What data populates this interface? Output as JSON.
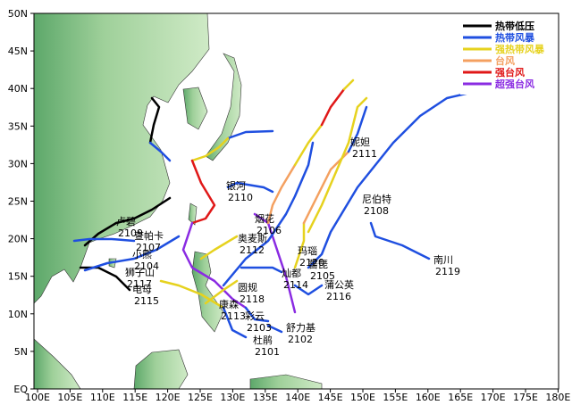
{
  "axes": {
    "lon_labels": [
      "100E",
      "105E",
      "110E",
      "115E",
      "120E",
      "125E",
      "130E",
      "135E",
      "140E",
      "145E",
      "150E",
      "155E",
      "160E",
      "165E",
      "170E",
      "175E",
      "180E"
    ],
    "lat_labels": [
      "EQ",
      "5N",
      "10N",
      "15N",
      "20N",
      "25N",
      "30N",
      "35N",
      "40N",
      "45N",
      "50N"
    ]
  },
  "legend": [
    {
      "label": "热带低压",
      "color": "#000000"
    },
    {
      "label": "热带风暴",
      "color": "#1f4fe0"
    },
    {
      "label": "强热带风暴",
      "color": "#e6d21e"
    },
    {
      "label": "台风",
      "color": "#f4a060"
    },
    {
      "label": "强台风",
      "color": "#e01818"
    },
    {
      "label": "超强台风",
      "color": "#8a2be2"
    }
  ],
  "storms": [
    {
      "name": "杜鹃",
      "number": "2101"
    },
    {
      "name": "舒力基",
      "number": "2102"
    },
    {
      "name": "彩云",
      "number": "2103"
    },
    {
      "name": "小熊",
      "number": "2104"
    },
    {
      "name": "蔷琵",
      "number": "2105"
    },
    {
      "name": "烟花",
      "number": "2106"
    },
    {
      "name": "查帕卡",
      "number": "2107"
    },
    {
      "name": "尼伯特",
      "number": "2108"
    },
    {
      "name": "卢碧",
      "number": "2109"
    },
    {
      "name": "银河",
      "number": "2110"
    },
    {
      "name": "妮妲",
      "number": "2111"
    },
    {
      "name": "奥麦斯",
      "number": "2112"
    },
    {
      "name": "康森",
      "number": "2113"
    },
    {
      "name": "灿都",
      "number": "2114"
    },
    {
      "name": "电母",
      "number": "2115"
    },
    {
      "name": "蒲公英",
      "number": "2116"
    },
    {
      "name": "狮子山",
      "number": "2117"
    },
    {
      "name": "圆规",
      "number": "2118"
    },
    {
      "name": "南川",
      "number": "2119"
    },
    {
      "name": "玛瑙",
      "number": "2120"
    }
  ]
}
